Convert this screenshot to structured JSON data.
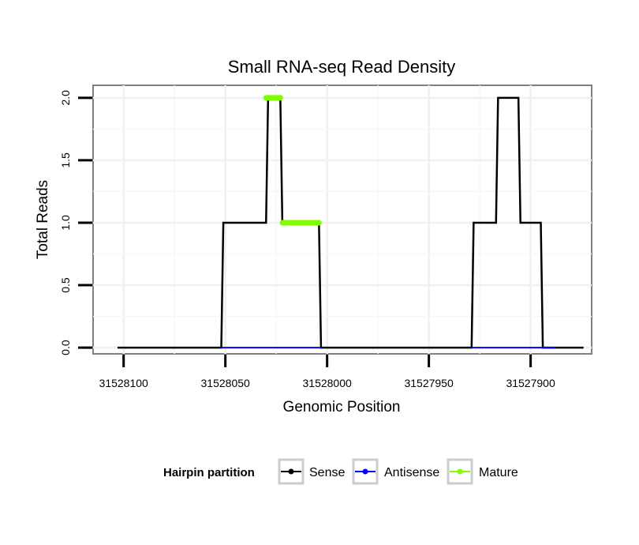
{
  "chart_data": {
    "type": "line",
    "title": "Small RNA-seq Read Density",
    "xlabel": "Genomic Position",
    "ylabel": "Total Reads",
    "x_reversed": true,
    "xlim": [
      31528115,
      31527870
    ],
    "ylim": [
      -0.05,
      2.1
    ],
    "x_ticks": [
      31528100,
      31528050,
      31528000,
      31527950,
      31527900
    ],
    "y_ticks": [
      0.0,
      0.5,
      1.0,
      1.5,
      2.0
    ],
    "x_tick_labels": [
      "31528100",
      "31528050",
      "31528000",
      "31527950",
      "31527900"
    ],
    "y_tick_labels": [
      "0.0",
      "0.5",
      "1.0",
      "1.5",
      "2.0"
    ],
    "grid": true,
    "legend": {
      "title": "Hairpin partition",
      "position": "bottom",
      "entries": [
        "Sense",
        "Antisense",
        "Mature"
      ]
    },
    "series": [
      {
        "name": "Sense",
        "color": "#000000",
        "x": [
          31528103,
          31528052,
          31528051,
          31528030,
          31528029,
          31528023,
          31528022,
          31528004,
          31528003,
          31527929,
          31527928,
          31527917,
          31527916,
          31527906,
          31527905,
          31527895,
          31527894,
          31527889,
          31527888,
          31527874
        ],
        "y": [
          0,
          0,
          1,
          1,
          2,
          2,
          1,
          1,
          0,
          0,
          1,
          1,
          2,
          2,
          1,
          1,
          0,
          0,
          0,
          0
        ]
      },
      {
        "name": "Antisense",
        "color": "#0000ff",
        "segments": [
          {
            "x": [
              31528052,
              31528003
            ],
            "y": [
              0,
              0
            ]
          },
          {
            "x": [
              31527929,
              31527888
            ],
            "y": [
              0,
              0
            ]
          }
        ]
      },
      {
        "name": "Mature",
        "color": "#7fff00",
        "segments": [
          {
            "x": [
              31528030,
              31528023
            ],
            "y": [
              2,
              2
            ]
          },
          {
            "x": [
              31528022,
              31528004
            ],
            "y": [
              1,
              1
            ]
          }
        ]
      }
    ]
  }
}
